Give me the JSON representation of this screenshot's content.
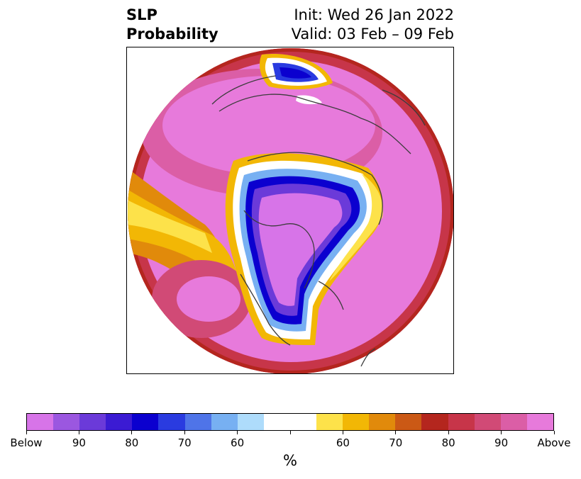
{
  "title": {
    "left_line1": "SLP",
    "left_line2": "Probability",
    "right_line1": "Init: Wed 26 Jan 2022",
    "right_line2": "Valid: 03 Feb – 09 Feb"
  },
  "colorbar": {
    "colors": [
      "#d774e8",
      "#9b57e0",
      "#6b3ad9",
      "#3b1bd3",
      "#0b00cf",
      "#2a3be0",
      "#4f74e8",
      "#77b0f2",
      "#aedcfb",
      "#ffffff",
      "#ffffff",
      "#fde24a",
      "#f2b705",
      "#e18a0b",
      "#cb5915",
      "#b4261e",
      "#c73549",
      "#d14a76",
      "#db5ea6",
      "#e77adb"
    ],
    "tick_labels": [
      "Below",
      "90",
      "80",
      "70",
      "60",
      "",
      "60",
      "70",
      "80",
      "90",
      "Above"
    ],
    "unit": "%"
  },
  "map": {
    "projection": "north-polar-stereographic",
    "field": "sea-level-pressure probability",
    "colors": {
      "above": "#e77adb",
      "above_mid": "#c73549",
      "above_low": "#b4261e",
      "above_weak": "#f2b705",
      "neutral": "#ffffff",
      "below_weak": "#aedcfb",
      "below_mid": "#2a3be0",
      "below_strong": "#0b00cf",
      "below": "#d774e8",
      "coast": "#3c3c3c"
    }
  }
}
